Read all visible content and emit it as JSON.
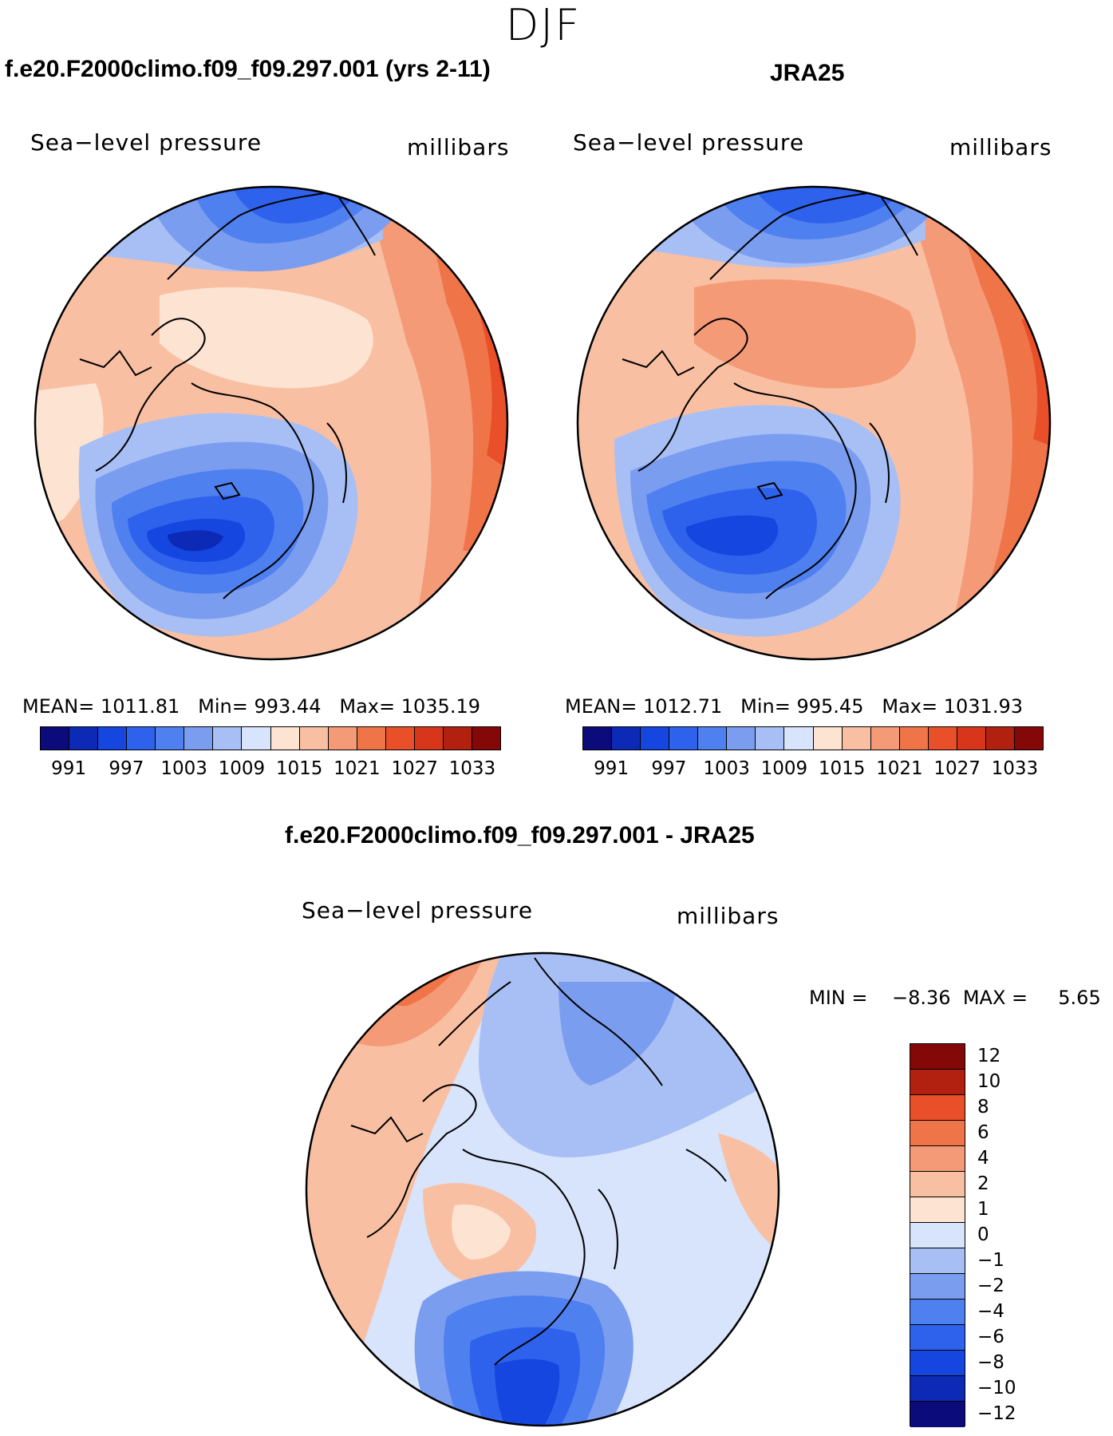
{
  "season": "DJF",
  "panels": {
    "model": {
      "title": "f.e20.F2000climo.f09_f09.297.001 (yrs 2-11)",
      "variable": "Sea−level pressure",
      "units": "millibars",
      "mean_label": "MEAN=",
      "mean": "1011.81",
      "min_label": "Min=",
      "min": "993.44",
      "max_label": "Max=",
      "max": "1035.19"
    },
    "obs": {
      "title": "JRA25",
      "variable": "Sea−level pressure",
      "units": "millibars",
      "mean_label": "MEAN=",
      "mean": "1012.71",
      "min_label": "Min=",
      "min": "995.45",
      "max_label": "Max=",
      "max": "1031.93"
    },
    "diff": {
      "title": "f.e20.F2000climo.f09_f09.297.001 - JRA25",
      "variable": "Sea−level pressure",
      "units": "millibars",
      "min_label": "MIN =",
      "min": "−8.36",
      "max_label": "MAX =",
      "max": "5.65"
    }
  },
  "colorbar_abs": {
    "colors": [
      "#0b0b7c",
      "#0c2ab6",
      "#1547e0",
      "#2f62ec",
      "#4f80ef",
      "#7b9df0",
      "#a8bff5",
      "#d7e4fb",
      "#fde3d2",
      "#f9bfa3",
      "#f59a76",
      "#ef7549",
      "#e9502a",
      "#d8361a",
      "#b22110",
      "#850808"
    ],
    "labels": [
      "991",
      "997",
      "1003",
      "1009",
      "1015",
      "1021",
      "1027",
      "1033"
    ]
  },
  "colorbar_diff": {
    "colors": [
      "#850808",
      "#b22110",
      "#e9502a",
      "#ef7549",
      "#f59a76",
      "#f9bfa3",
      "#fde3d2",
      "#d7e4fb",
      "#a8bff5",
      "#7b9df0",
      "#4f80ef",
      "#2f62ec",
      "#1547e0",
      "#0c2ab6",
      "#0b0b7c"
    ],
    "labels": [
      "12",
      "10",
      "8",
      "6",
      "4",
      "2",
      "1",
      "0",
      "−1",
      "−2",
      "−4",
      "−6",
      "−8",
      "−10",
      "−12"
    ]
  }
}
